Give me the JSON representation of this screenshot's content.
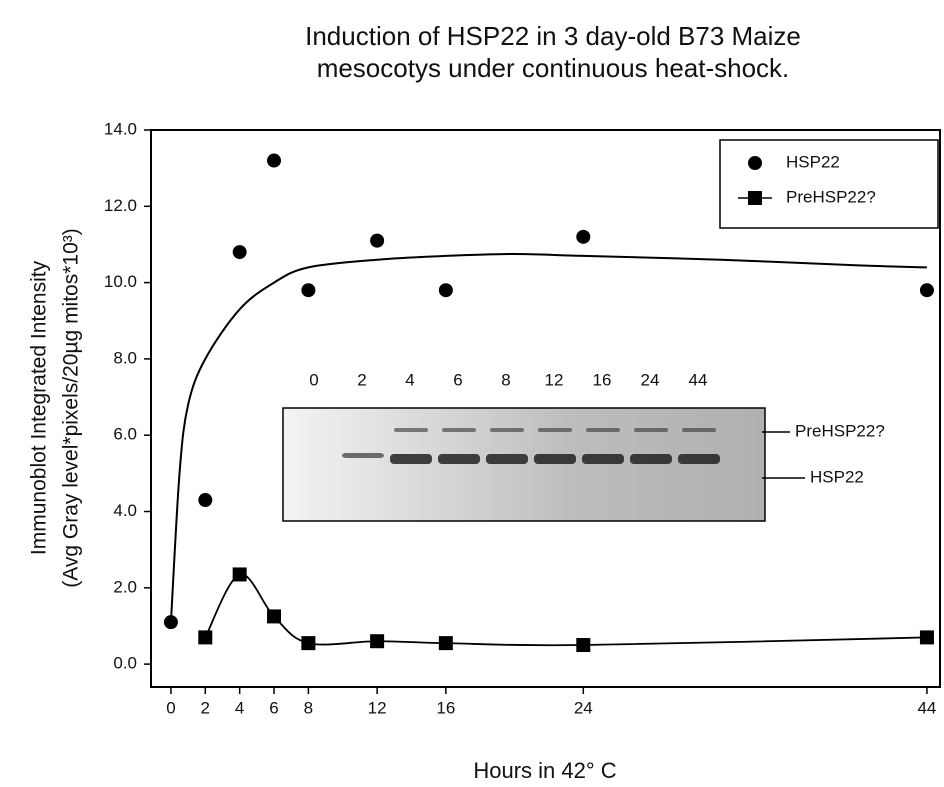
{
  "chart_data": {
    "type": "scatter",
    "title": [
      "Induction of HSP22 in 3 day-old B73 Maize",
      "mesocotys under continuous heat-shock."
    ],
    "x_label": "Hours in 42° C",
    "y_label": [
      "Immunoblot Integrated Intensity",
      "(Avg Gray level*pixels/20µg mitos*10³)"
    ],
    "xlim": [
      -1.16,
      44.76
    ],
    "ylim": [
      -0.6,
      14
    ],
    "xticks": [
      0,
      2,
      4,
      6,
      8,
      12,
      16,
      24,
      44
    ],
    "yticks": [
      {
        "value": 0,
        "label": "0.0"
      },
      {
        "value": 2,
        "label": "2.0"
      },
      {
        "value": 4,
        "label": "4.0"
      },
      {
        "value": 6,
        "label": "6.0"
      },
      {
        "value": 8,
        "label": "8.0"
      },
      {
        "value": 10,
        "label": "10.0"
      },
      {
        "value": 12,
        "label": "12.0"
      },
      {
        "value": 14,
        "label": "14.0"
      }
    ],
    "legend": "top-right",
    "series": [
      {
        "name": "HSP22",
        "color": "#000000",
        "marker": "circle",
        "x": [
          0,
          2,
          4,
          6,
          8,
          12,
          16,
          24,
          44
        ],
        "values": [
          1.1,
          4.3,
          10.8,
          13.2,
          9.8,
          11.1,
          9.8,
          11.2,
          9.8
        ]
      },
      {
        "name": "PreHSP22?",
        "color": "#000000",
        "marker": "square",
        "line": true,
        "x": [
          2,
          4,
          6,
          8,
          12,
          16,
          24,
          44
        ],
        "values": [
          0.7,
          2.35,
          1.25,
          0.55,
          0.6,
          0.55,
          0.5,
          0.7
        ]
      }
    ],
    "fit": {
      "color": "#000000",
      "x": [
        0,
        0.5,
        1,
        2,
        4,
        6,
        8,
        12,
        16,
        20,
        24,
        32,
        40,
        44
      ],
      "values": [
        1.1,
        5.0,
        6.8,
        8.0,
        9.3,
        10.0,
        10.4,
        10.6,
        10.7,
        10.75,
        10.7,
        10.6,
        10.45,
        10.4
      ]
    },
    "inset": {
      "lanes": [
        "0",
        "2",
        "4",
        "6",
        "8",
        "12",
        "16",
        "24",
        "44"
      ],
      "band_labels": [
        "PreHSP22?",
        "HSP22"
      ]
    }
  }
}
